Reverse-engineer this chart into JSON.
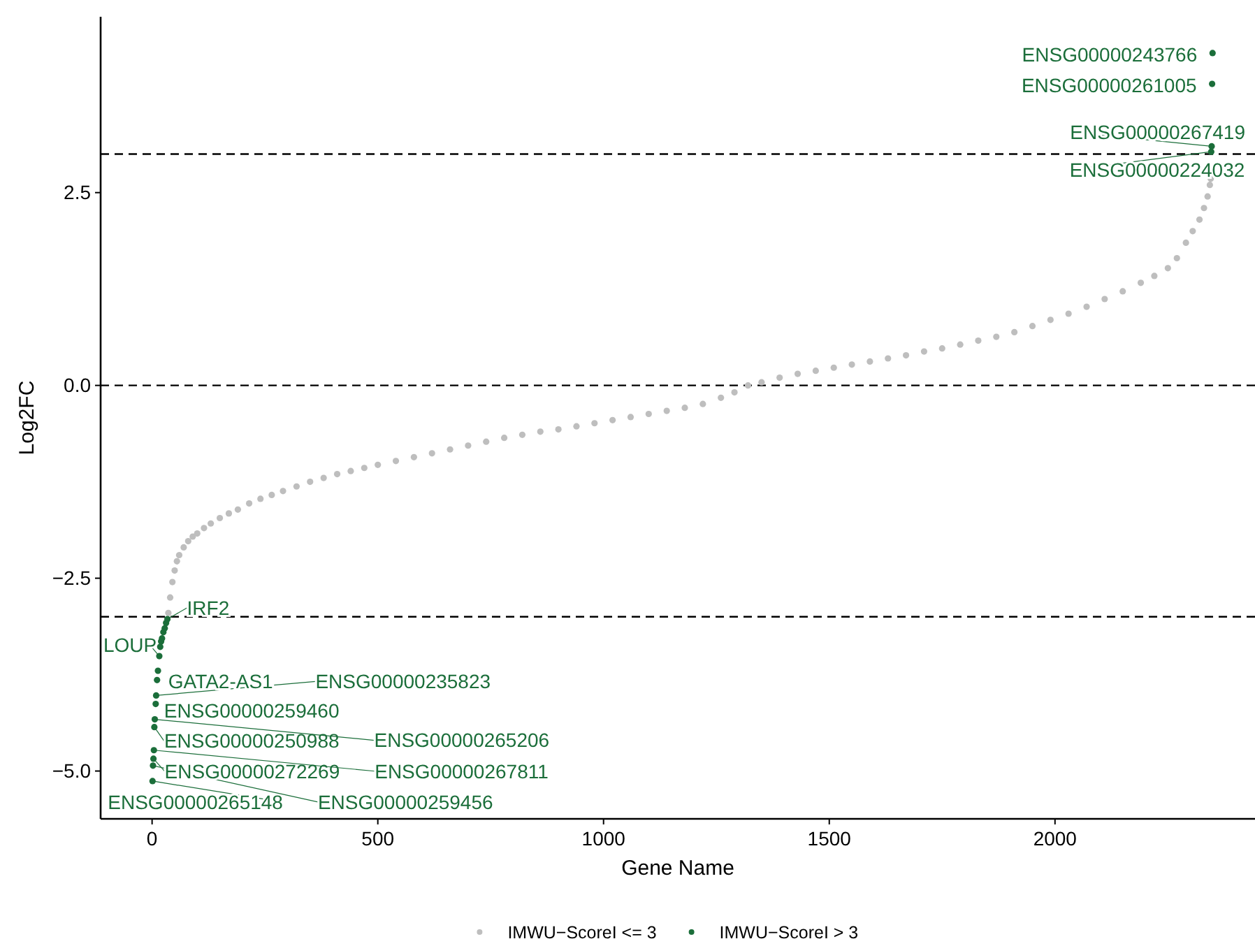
{
  "chart_data": {
    "type": "scatter",
    "xlabel": "Gene Name",
    "ylabel": "Log2FC",
    "xlim": [
      -114,
      2443
    ],
    "ylim": [
      -5.62,
      4.78
    ],
    "xticks": [
      0,
      500,
      1000,
      1500,
      2000
    ],
    "yticks": [
      {
        "value": -5,
        "label": "−5.0"
      },
      {
        "value": -2.5,
        "label": "−2.5"
      },
      {
        "value": 0,
        "label": "0.0"
      },
      {
        "value": 2.5,
        "label": "2.5"
      }
    ],
    "grid": false,
    "legend": "bottom",
    "marker": "circle",
    "series": [
      {
        "name": "IMWU−ScoreI <= 3",
        "color": "#bebebe",
        "x": [
          36,
          40,
          45,
          50,
          55,
          60,
          70,
          80,
          90,
          100,
          115,
          130,
          150,
          170,
          190,
          215,
          240,
          265,
          290,
          320,
          350,
          380,
          410,
          440,
          470,
          500,
          540,
          580,
          620,
          660,
          700,
          740,
          780,
          820,
          860,
          900,
          940,
          980,
          1020,
          1060,
          1100,
          1140,
          1180,
          1220,
          1260,
          1290,
          1320,
          1350,
          1390,
          1430,
          1470,
          1510,
          1550,
          1590,
          1630,
          1670,
          1710,
          1750,
          1790,
          1830,
          1870,
          1910,
          1950,
          1990,
          2030,
          2070,
          2110,
          2150,
          2190,
          2220,
          2250,
          2270,
          2290,
          2305,
          2320,
          2330,
          2338,
          2343,
          2345
        ],
        "values": [
          -2.95,
          -2.75,
          -2.55,
          -2.4,
          -2.28,
          -2.2,
          -2.1,
          -2.02,
          -1.96,
          -1.92,
          -1.85,
          -1.79,
          -1.72,
          -1.66,
          -1.61,
          -1.53,
          -1.47,
          -1.42,
          -1.37,
          -1.31,
          -1.25,
          -1.2,
          -1.15,
          -1.11,
          -1.07,
          -1.03,
          -0.98,
          -0.93,
          -0.88,
          -0.83,
          -0.78,
          -0.73,
          -0.68,
          -0.64,
          -0.6,
          -0.57,
          -0.53,
          -0.49,
          -0.45,
          -0.41,
          -0.37,
          -0.33,
          -0.29,
          -0.24,
          -0.16,
          -0.09,
          0,
          0.04,
          0.1,
          0.15,
          0.19,
          0.23,
          0.27,
          0.31,
          0.35,
          0.39,
          0.44,
          0.48,
          0.53,
          0.58,
          0.63,
          0.69,
          0.77,
          0.85,
          0.93,
          1.02,
          1.12,
          1.22,
          1.33,
          1.42,
          1.52,
          1.65,
          1.85,
          2.0,
          2.15,
          2.3,
          2.45,
          2.6,
          2.68
        ]
      },
      {
        "name": "IMWU−ScoreI > 3",
        "color": "#1b6e3a",
        "x": [
          1,
          2,
          3,
          4,
          5,
          6,
          8,
          9,
          11,
          13,
          16,
          18,
          20,
          22,
          25,
          28,
          31,
          34,
          2346,
          2347,
          2348,
          2349
        ],
        "values": [
          -5.13,
          -4.93,
          -4.84,
          -4.73,
          -4.43,
          -4.33,
          -4.13,
          -4.02,
          -3.82,
          -3.7,
          -3.51,
          -3.39,
          -3.32,
          -3.28,
          -3.2,
          -3.15,
          -3.08,
          -3.03,
          3.03,
          3.1,
          3.91,
          4.31
        ]
      }
    ],
    "ref_lines": [
      {
        "axis": "y",
        "value": 3,
        "line_style": "dashed",
        "color": "#000000"
      },
      {
        "axis": "y",
        "value": 0,
        "line_style": "dashed",
        "color": "#000000"
      },
      {
        "axis": "y",
        "value": -3,
        "line_style": "dashed",
        "color": "#000000"
      }
    ],
    "annotations": [
      {
        "text": "ENSG00000265148",
        "x": 1,
        "y": -5.13
      },
      {
        "text": "ENSG00000259456",
        "x": 2,
        "y": -4.93
      },
      {
        "text": "ENSG00000272269",
        "x": 3,
        "y": -4.84
      },
      {
        "text": "ENSG00000267811",
        "x": 4,
        "y": -4.73
      },
      {
        "text": "ENSG00000250988",
        "x": 5,
        "y": -4.43
      },
      {
        "text": "ENSG00000265206",
        "x": 6,
        "y": -4.33
      },
      {
        "text": "ENSG00000259460",
        "x": 8,
        "y": -4.13
      },
      {
        "text": "ENSG00000235823",
        "x": 9,
        "y": -4.02
      },
      {
        "text": "GATA2-AS1",
        "x": 11,
        "y": -3.82
      },
      {
        "text": "LOUP",
        "x": 16,
        "y": -3.51
      },
      {
        "text": "IRF2",
        "x": 34,
        "y": -3.03
      },
      {
        "text": "ENSG00000243766",
        "x": 2349,
        "y": 4.31
      },
      {
        "text": "ENSG00000261005",
        "x": 2348,
        "y": 3.91
      },
      {
        "text": "ENSG00000267419",
        "x": 2347,
        "y": 3.1
      },
      {
        "text": "ENSG00000224032",
        "x": 2346,
        "y": 3.03
      }
    ]
  }
}
